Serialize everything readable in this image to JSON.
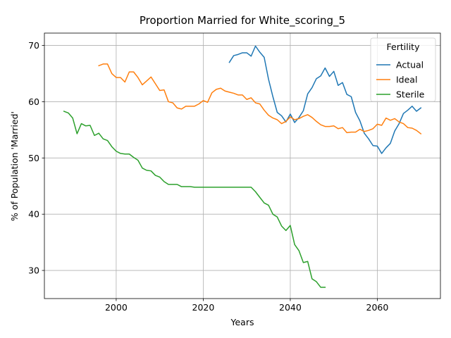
{
  "chart_data": {
    "type": "line",
    "title": "Proportion Married for White_scoring_5",
    "xlabel": "Years",
    "ylabel": "% of Population 'Married'",
    "xlim": [
      1983.5,
      2074.5
    ],
    "ylim": [
      25,
      72.2
    ],
    "xticks": [
      2000,
      2020,
      2040,
      2060
    ],
    "yticks": [
      30,
      40,
      50,
      60,
      70
    ],
    "grid": true,
    "legend": {
      "title": "Fertility",
      "placement": "upper right",
      "entries": [
        "Actual",
        "Ideal",
        "Sterile"
      ]
    },
    "series": [
      {
        "name": "Actual",
        "color": "#1f77b4",
        "x": [
          2026,
          2027,
          2028,
          2029,
          2030,
          2031,
          2032,
          2033,
          2034,
          2035,
          2036,
          2037,
          2038,
          2039,
          2040,
          2041,
          2042,
          2043,
          2044,
          2045,
          2046,
          2047,
          2048,
          2049,
          2050,
          2051,
          2052,
          2053,
          2054,
          2055,
          2056,
          2057,
          2058,
          2059,
          2060,
          2061,
          2062,
          2063,
          2064,
          2065,
          2066,
          2067,
          2068,
          2069,
          2070
        ],
        "y": [
          67.0,
          68.2,
          68.4,
          68.7,
          68.7,
          68.1,
          69.9,
          68.8,
          67.9,
          64.0,
          60.9,
          58.1,
          57.5,
          56.4,
          57.8,
          56.3,
          57.2,
          58.4,
          61.4,
          62.5,
          64.1,
          64.6,
          66.0,
          64.5,
          65.4,
          62.9,
          63.4,
          61.3,
          60.9,
          58.1,
          56.6,
          54.4,
          53.4,
          52.2,
          52.1,
          50.8,
          51.8,
          52.6,
          54.8,
          56.1,
          57.9,
          58.5,
          59.2,
          58.3,
          58.9
        ]
      },
      {
        "name": "Ideal",
        "color": "#ff7f0e",
        "x": [
          1996,
          1997,
          1998,
          1999,
          2000,
          2001,
          2002,
          2003,
          2004,
          2005,
          2006,
          2007,
          2008,
          2009,
          2010,
          2011,
          2012,
          2013,
          2014,
          2015,
          2016,
          2017,
          2018,
          2019,
          2020,
          2021,
          2022,
          2023,
          2024,
          2025,
          2026,
          2027,
          2028,
          2029,
          2030,
          2031,
          2032,
          2033,
          2034,
          2035,
          2036,
          2037,
          2038,
          2039,
          2040,
          2041,
          2042,
          2043,
          2044,
          2045,
          2046,
          2047,
          2048,
          2049,
          2050,
          2051,
          2052,
          2053,
          2054,
          2055,
          2056,
          2057,
          2058,
          2059,
          2060,
          2061,
          2062,
          2063,
          2064,
          2065,
          2066,
          2067,
          2068,
          2069,
          2070
        ],
        "y": [
          66.4,
          66.7,
          66.7,
          65.0,
          64.3,
          64.3,
          63.5,
          65.3,
          65.3,
          64.3,
          63.0,
          63.7,
          64.4,
          63.2,
          62.0,
          62.1,
          60.0,
          59.8,
          58.9,
          58.7,
          59.2,
          59.2,
          59.2,
          59.6,
          60.2,
          59.9,
          61.6,
          62.2,
          62.4,
          61.9,
          61.7,
          61.5,
          61.2,
          61.2,
          60.4,
          60.7,
          59.8,
          59.6,
          58.5,
          57.6,
          57.1,
          56.8,
          56.1,
          56.5,
          57.3,
          56.8,
          57.0,
          57.4,
          57.7,
          57.2,
          56.5,
          55.9,
          55.6,
          55.6,
          55.7,
          55.2,
          55.4,
          54.5,
          54.6,
          54.6,
          55.1,
          54.7,
          54.9,
          55.2,
          56.0,
          55.8,
          57.1,
          56.7,
          57.0,
          56.4,
          56.1,
          55.4,
          55.3,
          54.9,
          54.3
        ]
      },
      {
        "name": "Sterile",
        "color": "#2ca02c",
        "x": [
          1988,
          1989,
          1990,
          1991,
          1992,
          1993,
          1994,
          1995,
          1996,
          1997,
          1998,
          1999,
          2000,
          2001,
          2002,
          2003,
          2004,
          2005,
          2006,
          2007,
          2008,
          2009,
          2010,
          2011,
          2012,
          2013,
          2014,
          2015,
          2016,
          2017,
          2018,
          2019,
          2020,
          2021,
          2022,
          2023,
          2024,
          2025,
          2026,
          2027,
          2028,
          2029,
          2030,
          2031,
          2032,
          2033,
          2034,
          2035,
          2036,
          2037,
          2038,
          2039,
          2040,
          2041,
          2042,
          2043,
          2044,
          2045,
          2046,
          2047,
          2048
        ],
        "y": [
          58.3,
          58.0,
          57.1,
          54.3,
          56.1,
          55.7,
          55.8,
          54.0,
          54.4,
          53.4,
          53.1,
          52.0,
          51.2,
          50.8,
          50.7,
          50.7,
          50.1,
          49.6,
          48.2,
          47.8,
          47.7,
          46.9,
          46.6,
          45.8,
          45.3,
          45.3,
          45.3,
          44.9,
          44.9,
          44.9,
          44.8,
          44.8,
          44.8,
          44.8,
          44.8,
          44.8,
          44.8,
          44.8,
          44.8,
          44.8,
          44.8,
          44.8,
          44.8,
          44.8,
          44.0,
          43.0,
          42.0,
          41.6,
          40.0,
          39.5,
          37.9,
          37.1,
          38.0,
          34.6,
          33.5,
          31.4,
          31.6,
          28.5,
          28.0,
          27.0,
          27.0
        ]
      }
    ]
  }
}
